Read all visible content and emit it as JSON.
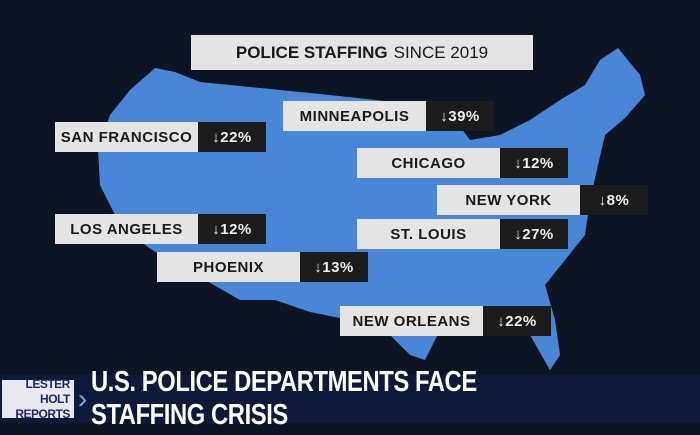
{
  "title": {
    "bold": "POLICE STAFFING",
    "rest": "SINCE 2019"
  },
  "cities": [
    {
      "name": "MINNEAPOLIS",
      "change": "↓39%"
    },
    {
      "name": "SAN FRANCISCO",
      "change": "↓22%"
    },
    {
      "name": "CHICAGO",
      "change": "↓12%"
    },
    {
      "name": "NEW YORK",
      "change": "↓8%"
    },
    {
      "name": "LOS ANGELES",
      "change": "↓12%"
    },
    {
      "name": "ST. LOUIS",
      "change": "↓27%"
    },
    {
      "name": "PHOENIX",
      "change": "↓13%"
    },
    {
      "name": "NEW ORLEANS",
      "change": "↓22%"
    }
  ],
  "lower_third": {
    "logo_line1": "LESTER HOLT",
    "logo_line2": "REPORTS",
    "headline": "U.S. POLICE DEPARTMENTS FACE STAFFING CRISIS"
  },
  "colors": {
    "map": "#4a86d8",
    "background": "#0d1524"
  }
}
